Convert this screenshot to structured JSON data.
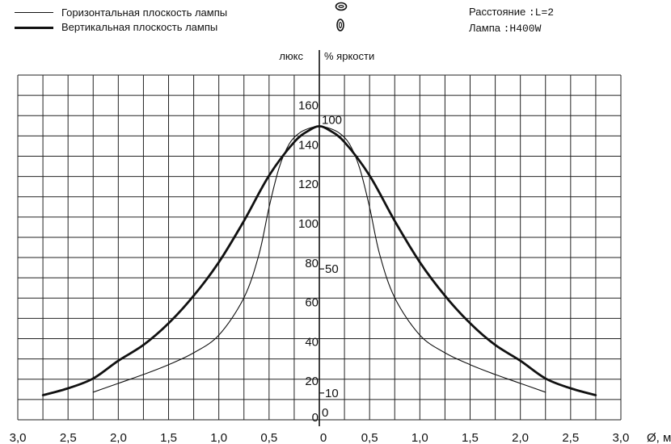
{
  "legend": {
    "horizontal_label": "Горизонтальная плоскость лампы",
    "vertical_label": "Вертикальная плоскость лампы"
  },
  "info": {
    "distance_label": "Расстояние",
    "distance_value": ":L=2",
    "lamp_label": "Лампа",
    "lamp_value": ":H400W"
  },
  "chart_data": {
    "type": "line",
    "xlabel": "Ø, м",
    "ylabel_left": "люкс",
    "ylabel_right": "% яркости",
    "xlim": [
      -3.0,
      3.0
    ],
    "ylim": [
      0,
      170
    ],
    "x_ticks": [
      "3,0",
      "2,5",
      "2,0",
      "1,5",
      "1,0",
      "0,5",
      "0",
      "0,5",
      "1,0",
      "1,5",
      "2,0",
      "2,5",
      "3,0"
    ],
    "y_ticks_lux": [
      "0",
      "20",
      "40",
      "60",
      "80",
      "100",
      "120",
      "140",
      "160"
    ],
    "y_ticks_percent": [
      "0",
      "10",
      "50",
      "100"
    ],
    "grid": true,
    "series": [
      {
        "name": "Горизонтальная плоскость лампы",
        "style": "thin",
        "x": [
          -2.25,
          -2.0,
          -1.75,
          -1.5,
          -1.25,
          -1.0,
          -0.75,
          -0.6,
          -0.5,
          -0.4,
          -0.3,
          -0.2,
          -0.1,
          0.0,
          0.1,
          0.2,
          0.3,
          0.4,
          0.5,
          0.6,
          0.75,
          1.0,
          1.25,
          1.5,
          1.75,
          2.0,
          2.25
        ],
        "y": [
          14,
          18.5,
          23,
          28,
          34,
          43,
          62,
          84,
          108,
          128,
          140,
          145.5,
          148,
          149,
          148,
          145.5,
          140,
          128,
          108,
          84,
          62,
          43,
          34,
          28,
          23,
          18.5,
          14
        ]
      },
      {
        "name": "Вертикальная плоскость лампы",
        "style": "thick",
        "x": [
          -2.75,
          -2.5,
          -2.25,
          -2.0,
          -1.75,
          -1.5,
          -1.25,
          -1.0,
          -0.75,
          -0.5,
          -0.25,
          -0.1,
          0.0,
          0.1,
          0.25,
          0.5,
          0.75,
          1.0,
          1.25,
          1.5,
          1.75,
          2.0,
          2.25,
          2.5,
          2.75
        ],
        "y": [
          12.5,
          16,
          21,
          30,
          38,
          49,
          63,
          80,
          101,
          124,
          141,
          147,
          149,
          147,
          141,
          124,
          101,
          80,
          63,
          49,
          38,
          30,
          21,
          16,
          12.5
        ]
      }
    ]
  }
}
